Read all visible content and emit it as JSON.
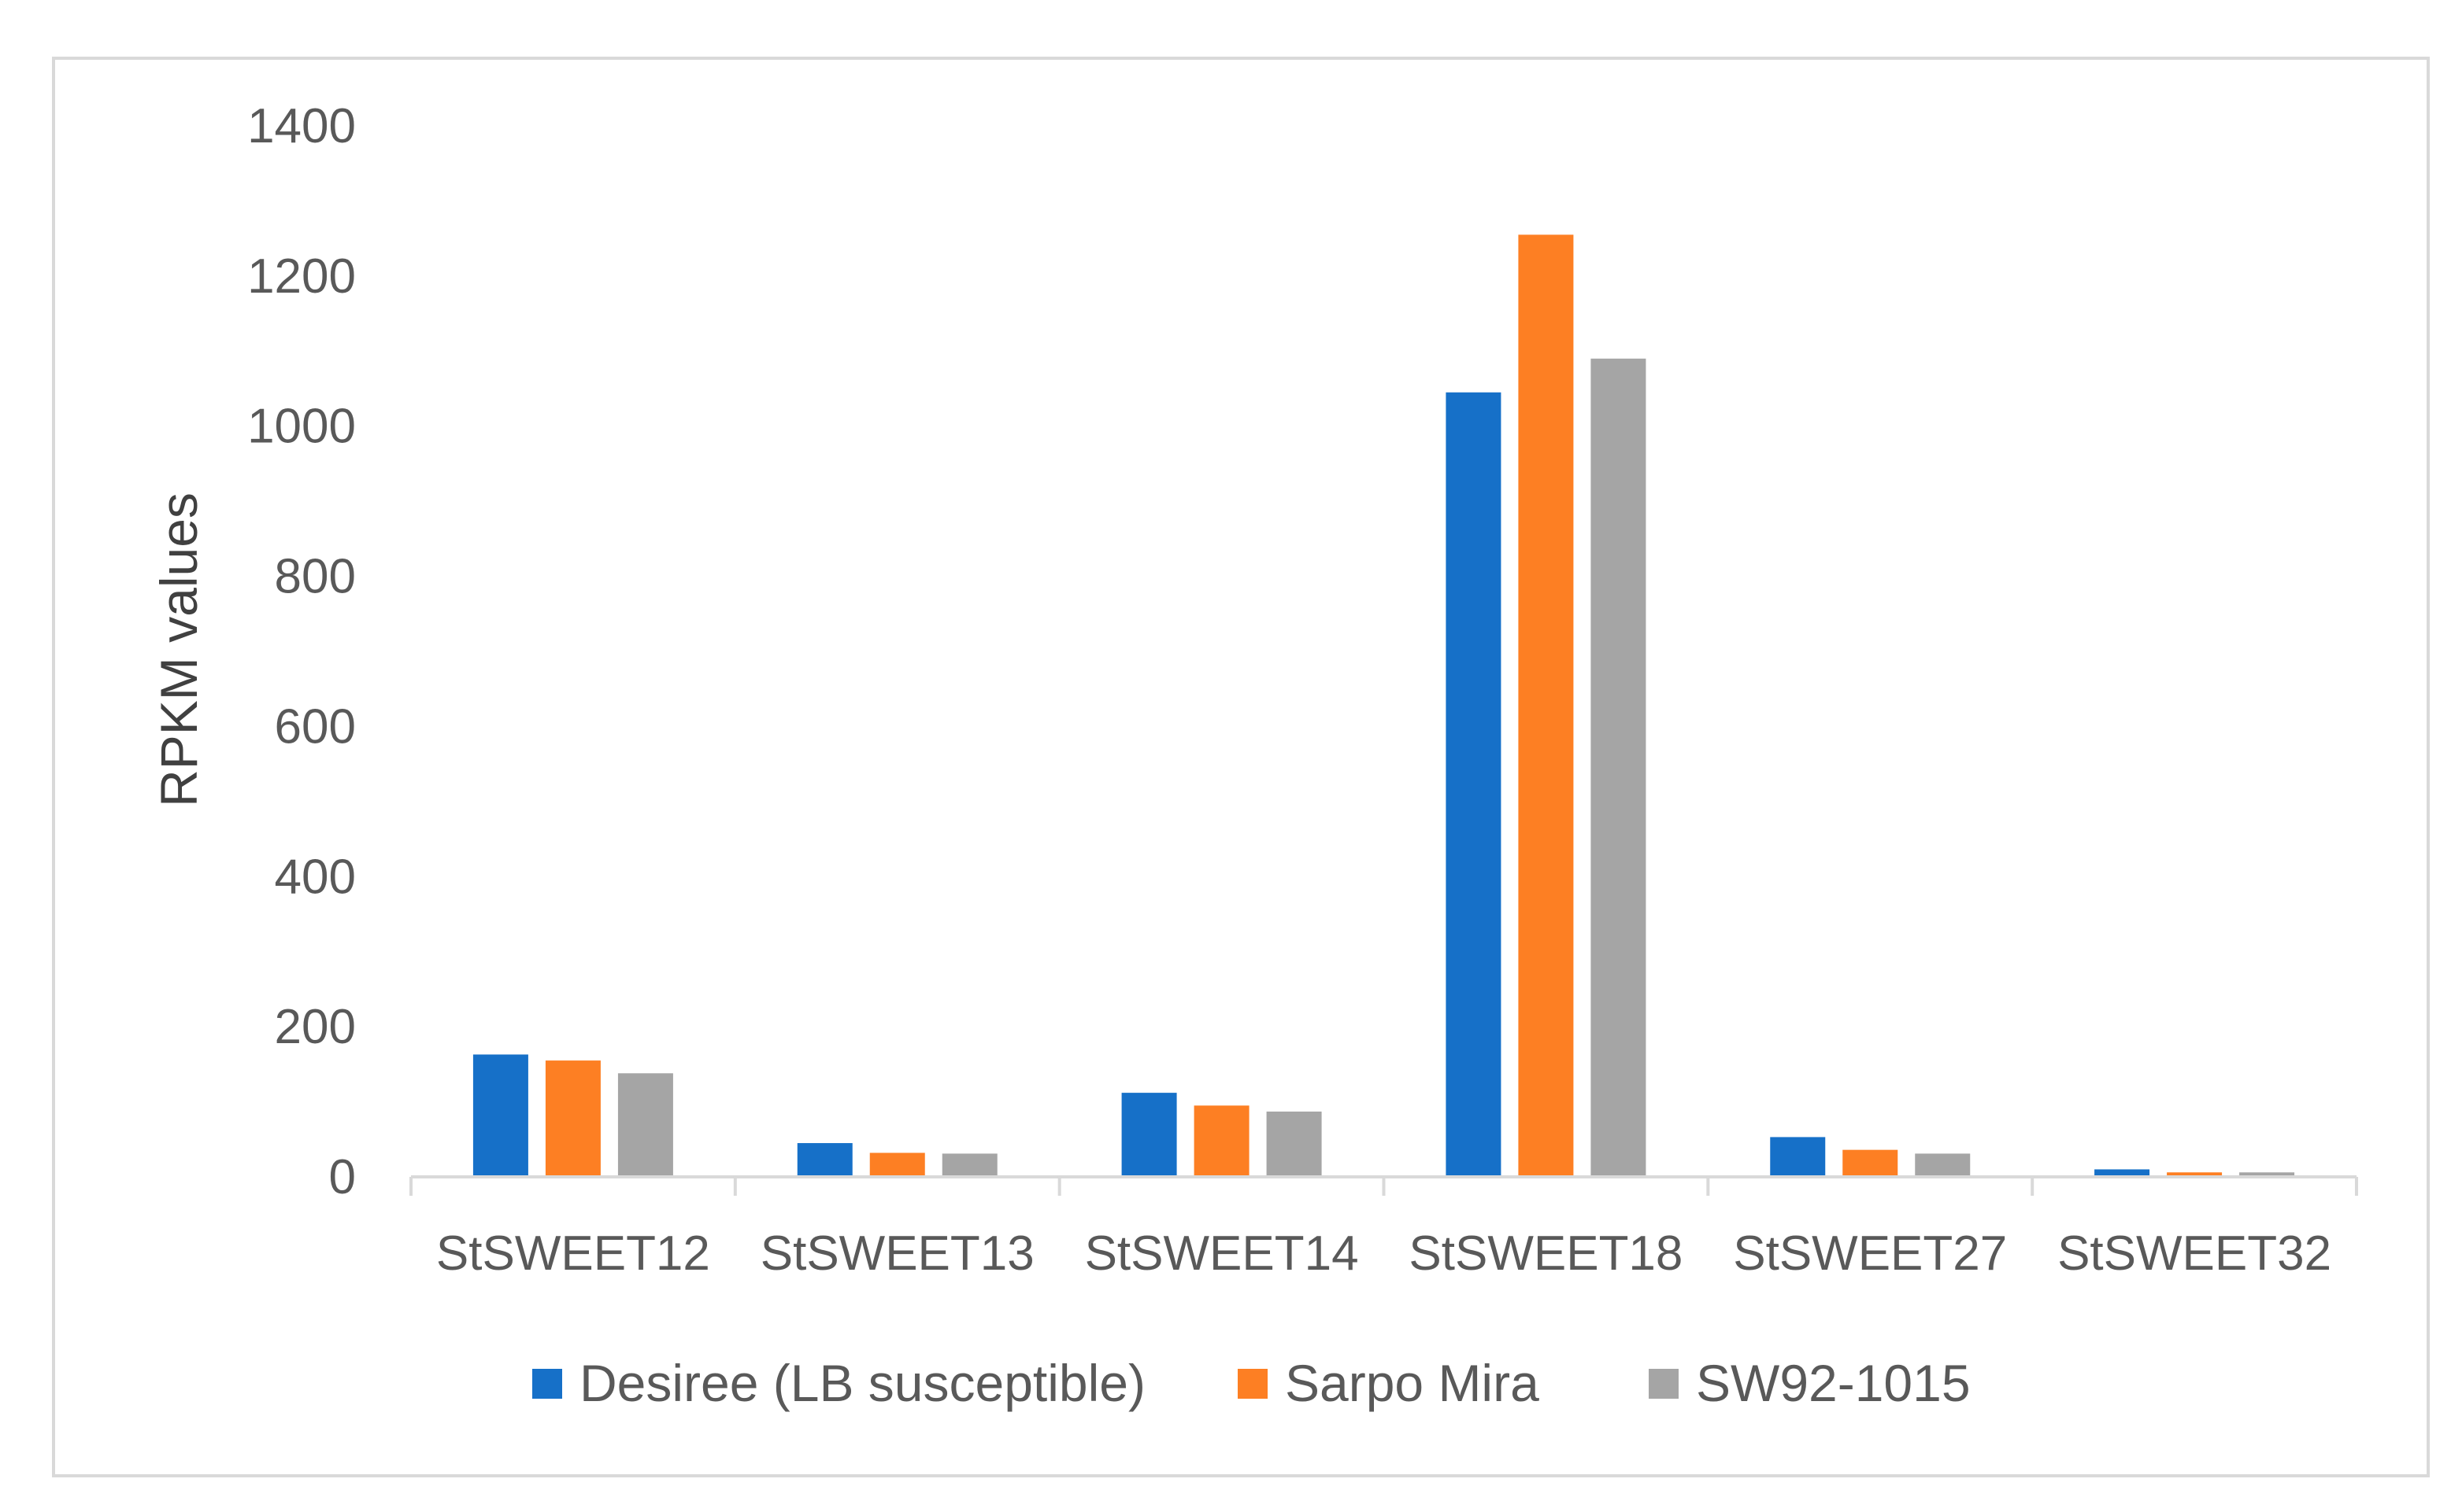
{
  "chart_data": {
    "type": "bar",
    "title": "",
    "xlabel": "",
    "ylabel": "RPKM values",
    "ylim": [
      0,
      1400
    ],
    "yticks": [
      0,
      200,
      400,
      600,
      800,
      1000,
      1200,
      1400
    ],
    "grid": false,
    "legend_position": "bottom",
    "categories": [
      "StSWEET12",
      "StSWEET13",
      "StSWEET14",
      "StSWEET18",
      "StSWEET27",
      "StSWEET32"
    ],
    "series": [
      {
        "name": "Desiree (LB susceptible)",
        "color": "#1670c8",
        "values": [
          163,
          45,
          112,
          1045,
          53,
          10
        ]
      },
      {
        "name": "Sarpo Mira",
        "color": "#fd7f23",
        "values": [
          155,
          32,
          95,
          1255,
          36,
          6
        ]
      },
      {
        "name": "SW92-1015",
        "color": "#a5a5a5",
        "values": [
          138,
          31,
          87,
          1090,
          31,
          6
        ]
      }
    ]
  }
}
